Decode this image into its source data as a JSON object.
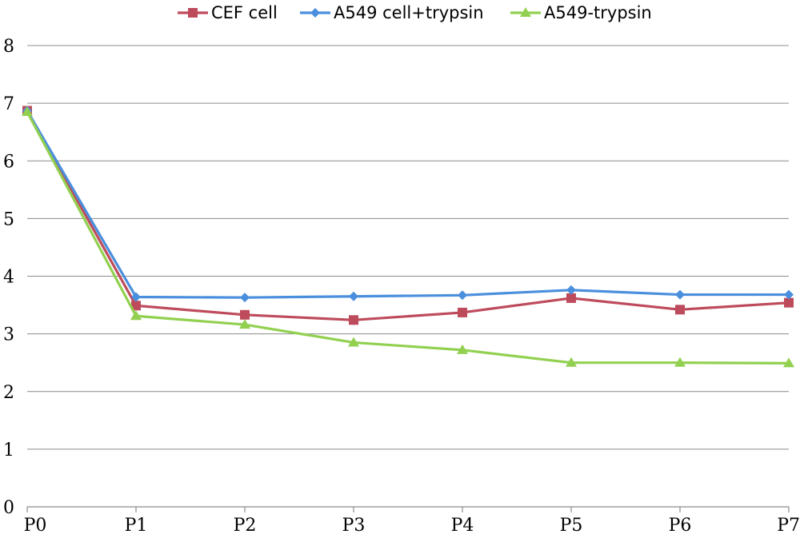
{
  "chart_data": {
    "type": "line",
    "title": "",
    "xlabel": "",
    "ylabel": "",
    "categories": [
      "P0",
      "P1",
      "P2",
      "P3",
      "P4",
      "P5",
      "P6",
      "P7"
    ],
    "ylim": [
      0,
      8
    ],
    "yticks": [
      0,
      1,
      2,
      3,
      4,
      5,
      6,
      7,
      8
    ],
    "grid": true,
    "legend_position": "top",
    "series": [
      {
        "name": "CEF cell",
        "color": "#be4b5c",
        "marker": "square",
        "values": [
          6.87,
          3.49,
          3.33,
          3.24,
          3.37,
          3.62,
          3.42,
          3.54
        ]
      },
      {
        "name": "A549 cell+trypsin",
        "color": "#4a8fdd",
        "marker": "diamond",
        "values": [
          6.87,
          3.64,
          3.63,
          3.65,
          3.67,
          3.76,
          3.68,
          3.68
        ]
      },
      {
        "name": "A549-trypsin",
        "color": "#92d050",
        "marker": "triangle",
        "values": [
          6.85,
          3.31,
          3.16,
          2.85,
          2.72,
          2.5,
          2.5,
          2.49
        ]
      }
    ]
  }
}
